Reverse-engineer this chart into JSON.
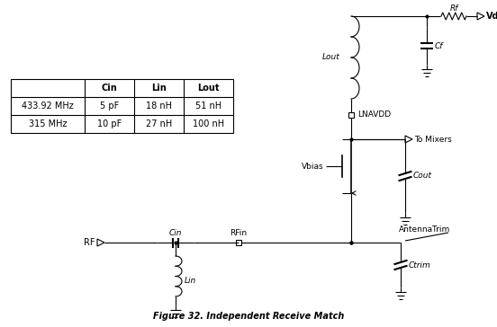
{
  "title": "Figure 32. Independent Receive Match",
  "background_color": "#ffffff",
  "table_headers": [
    "",
    "Cin",
    "Lin",
    "Lout"
  ],
  "table_rows": [
    [
      "433.92 MHz",
      "5 pF",
      "18 nH",
      "51 nH"
    ],
    [
      "315 MHz",
      "10 pF",
      "27 nH",
      "100 nH"
    ]
  ],
  "fig_width": 5.52,
  "fig_height": 3.64,
  "dpi": 100
}
